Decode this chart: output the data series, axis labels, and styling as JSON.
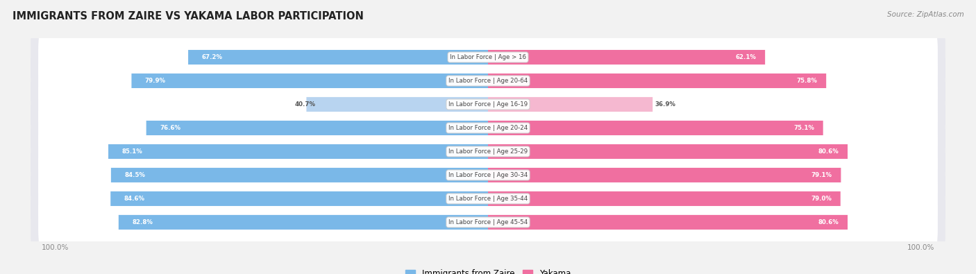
{
  "title": "IMMIGRANTS FROM ZAIRE VS YAKAMA LABOR PARTICIPATION",
  "source": "Source: ZipAtlas.com",
  "categories": [
    "In Labor Force | Age > 16",
    "In Labor Force | Age 20-64",
    "In Labor Force | Age 16-19",
    "In Labor Force | Age 20-24",
    "In Labor Force | Age 25-29",
    "In Labor Force | Age 30-34",
    "In Labor Force | Age 35-44",
    "In Labor Force | Age 45-54"
  ],
  "zaire_values": [
    67.2,
    79.9,
    40.7,
    76.6,
    85.1,
    84.5,
    84.6,
    82.8
  ],
  "yakama_values": [
    62.1,
    75.8,
    36.9,
    75.1,
    80.6,
    79.1,
    79.0,
    80.6
  ],
  "zaire_color": "#7ab8e8",
  "zaire_color_light": "#b8d4f0",
  "yakama_color": "#f06fa0",
  "yakama_color_light": "#f5b8d0",
  "bg_color": "#f2f2f2",
  "row_bg_even": "#ededf2",
  "row_bg_odd": "#e6e6ee",
  "pill_bg": "#f8f8fc",
  "max_value": 100.0,
  "bar_height": 0.62,
  "figsize": [
    14.06,
    3.95
  ],
  "dpi": 100
}
